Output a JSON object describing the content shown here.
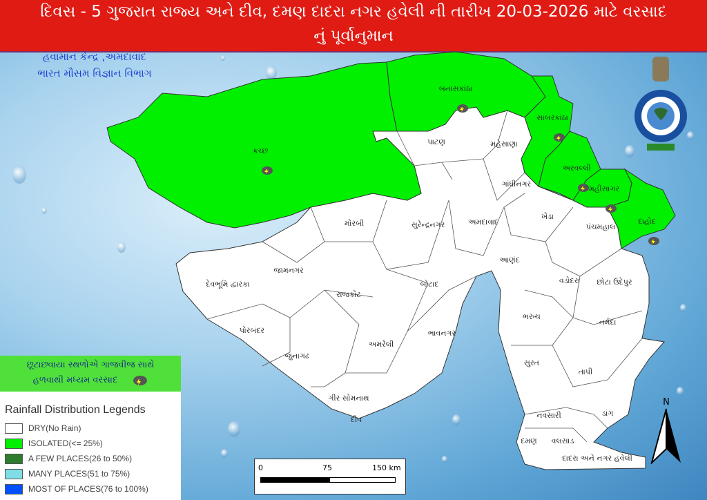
{
  "header": {
    "title_line1": "દિવસ - 5 ગુજરાત રાજ્ય અને દીવ, દમણ દાદરા નગર હવેલી ની તારીખ 20-03-2026 માટે વરસાદ",
    "title_line2": "નું પૂર્વાનુમાન"
  },
  "agency": {
    "line1": "હવામાન કેન્દ્ર ,અમદાવાદ",
    "line2": "ભારત મૌસમ વિજ્ઞાન વિભાગ"
  },
  "emblem": {
    "text": "भारत मौसम विज्ञान विभाग INDIA METEOROLOGICAL DEPARTMENT"
  },
  "colors": {
    "dry": "#ffffff",
    "isolated": "#00f000",
    "few": "#2e7d2e",
    "many": "#7fdde6",
    "most": "#0050ff",
    "title_bg": "#e01b14"
  },
  "districts": [
    {
      "name": "કચ્છ",
      "category": "isolated",
      "thunderstorm": true
    },
    {
      "name": "બનાસકાંઠા",
      "category": "isolated",
      "thunderstorm": true
    },
    {
      "name": "પાટણ",
      "category": "dry"
    },
    {
      "name": "મહેસાણા",
      "category": "dry"
    },
    {
      "name": "સાબરકાંઠા",
      "category": "isolated",
      "thunderstorm": true
    },
    {
      "name": "અરવલ્લી",
      "category": "isolated",
      "thunderstorm": true
    },
    {
      "name": "ગાંધીનગર",
      "category": "dry"
    },
    {
      "name": "મહીસાગર",
      "category": "isolated",
      "thunderstorm": true
    },
    {
      "name": "દાહોદ",
      "category": "isolated",
      "thunderstorm": true
    },
    {
      "name": "મોરબી",
      "category": "dry"
    },
    {
      "name": "સુરેન્દ્રનગર",
      "category": "dry"
    },
    {
      "name": "અમદાવાદ",
      "category": "dry"
    },
    {
      "name": "ખેડા",
      "category": "dry"
    },
    {
      "name": "પંચમહાલ",
      "category": "dry"
    },
    {
      "name": "આણંદ",
      "category": "dry"
    },
    {
      "name": "વડોદરા",
      "category": "dry"
    },
    {
      "name": "છોટા ઉદેપુર",
      "category": "dry"
    },
    {
      "name": "જામનગર",
      "category": "dry"
    },
    {
      "name": "દેવભૂમિ દ્વારકા",
      "category": "dry"
    },
    {
      "name": "રાજકોટ",
      "category": "dry"
    },
    {
      "name": "બોટાદ",
      "category": "dry"
    },
    {
      "name": "ભરુચ",
      "category": "dry"
    },
    {
      "name": "નર્મદા",
      "category": "dry"
    },
    {
      "name": "પોરબંદર",
      "category": "dry"
    },
    {
      "name": "અમરેલી",
      "category": "dry"
    },
    {
      "name": "ભાવનગર",
      "category": "dry"
    },
    {
      "name": "જુનાગઢ",
      "category": "dry"
    },
    {
      "name": "સુરત",
      "category": "dry"
    },
    {
      "name": "તાપી",
      "category": "dry"
    },
    {
      "name": "ગીર સોમનાથ",
      "category": "dry"
    },
    {
      "name": "નવસારી",
      "category": "dry"
    },
    {
      "name": "ડાંગ",
      "category": "dry"
    },
    {
      "name": "દીવ",
      "category": "dry"
    },
    {
      "name": "દમણ",
      "category": "dry"
    },
    {
      "name": "વલસાડ",
      "category": "dry"
    },
    {
      "name": "દાદરા અને નગર હવેલી",
      "category": "dry"
    }
  ],
  "forecast_label": {
    "line1": "છૂટાછવાયા સ્થળોએ ગાજવીજ સાથે",
    "line2": "હળવાથી મધ્યમ વરસાદ",
    "icon": "thunderstorm-cloud-icon"
  },
  "legend": {
    "title": "Rainfall Distribution Legends",
    "items": [
      {
        "label": "DRY(No Rain)",
        "color": "#ffffff"
      },
      {
        "label": "ISOLATED(<= 25%)",
        "color": "#00f000"
      },
      {
        "label": "A FEW PLACES(26 to 50%)",
        "color": "#2e7d2e"
      },
      {
        "label": "MANY PLACES(51 to 75%)",
        "color": "#7fdde6"
      },
      {
        "label": "MOST OF PLACES(76 to 100%)",
        "color": "#0050ff"
      }
    ]
  },
  "scale": {
    "labels": [
      "0",
      "75",
      "150 km"
    ]
  },
  "north": {
    "label": "N"
  }
}
